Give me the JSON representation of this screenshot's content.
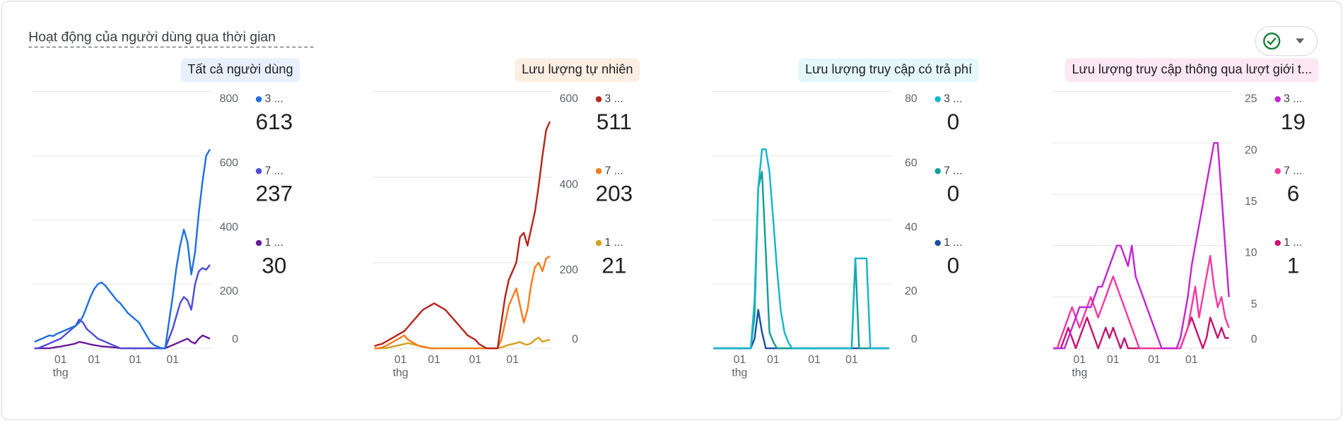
{
  "page_title": "Hoạt động của người dùng qua thời gian",
  "chart_data": [
    {
      "type": "line",
      "title": "Tất cả người dùng",
      "title_bg": "#e8f0fe",
      "xlim": [
        0,
        47
      ],
      "xticks": [
        {
          "value": 7,
          "label": "01"
        },
        {
          "value": 16,
          "label": "01"
        },
        {
          "value": 27,
          "label": "01"
        },
        {
          "value": 37,
          "label": "01"
        }
      ],
      "x_unit": "thg",
      "ylim": [
        0,
        800
      ],
      "yticks": [
        0,
        200,
        400,
        600,
        800
      ],
      "series": [
        {
          "name": "3 ...",
          "color": "#1f6fe0",
          "total": 613,
          "values": [
            20,
            25,
            30,
            35,
            40,
            38,
            45,
            50,
            55,
            60,
            65,
            70,
            80,
            100,
            130,
            160,
            185,
            200,
            205,
            195,
            180,
            165,
            150,
            140,
            125,
            110,
            100,
            90,
            80,
            60,
            40,
            20,
            10,
            5,
            0,
            0,
            80,
            160,
            250,
            320,
            370,
            330,
            230,
            300,
            420,
            520,
            600,
            620
          ]
        },
        {
          "name": "7 ...",
          "color": "#4e4bdb",
          "total": 237,
          "values": [
            0,
            0,
            5,
            10,
            15,
            20,
            25,
            30,
            40,
            50,
            60,
            70,
            90,
            80,
            60,
            50,
            40,
            30,
            25,
            20,
            15,
            10,
            5,
            0,
            0,
            0,
            0,
            0,
            0,
            0,
            0,
            0,
            0,
            0,
            0,
            0,
            30,
            60,
            100,
            140,
            160,
            150,
            120,
            200,
            240,
            250,
            245,
            260
          ]
        },
        {
          "name": "1 ...",
          "color": "#6a1b9a",
          "total": 30,
          "values": [
            0,
            0,
            0,
            0,
            0,
            2,
            4,
            5,
            8,
            10,
            12,
            15,
            20,
            18,
            15,
            12,
            10,
            8,
            6,
            5,
            4,
            3,
            2,
            0,
            0,
            0,
            0,
            0,
            0,
            0,
            0,
            0,
            0,
            0,
            0,
            0,
            5,
            10,
            15,
            20,
            25,
            30,
            20,
            15,
            30,
            40,
            35,
            30
          ]
        }
      ]
    },
    {
      "type": "line",
      "title": "Lưu lượng tự nhiên",
      "title_bg": "#fdeee2",
      "xlim": [
        0,
        47
      ],
      "xticks": [
        {
          "value": 7,
          "label": "01"
        },
        {
          "value": 16,
          "label": "01"
        },
        {
          "value": 27,
          "label": "01"
        },
        {
          "value": 37,
          "label": "01"
        }
      ],
      "x_unit": "thg",
      "ylim": [
        0,
        600
      ],
      "yticks": [
        0,
        200,
        400,
        600
      ],
      "series": [
        {
          "name": "3 ...",
          "color": "#b3261e",
          "total": 511,
          "values": [
            5,
            8,
            10,
            15,
            20,
            25,
            30,
            35,
            40,
            50,
            60,
            70,
            80,
            90,
            95,
            100,
            105,
            100,
            95,
            90,
            80,
            70,
            60,
            50,
            40,
            30,
            25,
            20,
            10,
            5,
            0,
            0,
            0,
            0,
            60,
            120,
            160,
            180,
            200,
            260,
            270,
            240,
            280,
            320,
            380,
            450,
            510,
            530
          ]
        },
        {
          "name": "7 ...",
          "color": "#f57c1f",
          "total": 203,
          "values": [
            0,
            0,
            2,
            5,
            10,
            15,
            20,
            25,
            30,
            20,
            15,
            10,
            5,
            3,
            2,
            0,
            0,
            0,
            0,
            0,
            0,
            0,
            0,
            0,
            0,
            0,
            0,
            0,
            0,
            0,
            0,
            0,
            0,
            0,
            20,
            60,
            100,
            120,
            140,
            100,
            60,
            90,
            150,
            190,
            200,
            180,
            210,
            215
          ]
        },
        {
          "name": "1 ...",
          "color": "#d4a020",
          "total": 21,
          "values": [
            0,
            0,
            0,
            0,
            2,
            4,
            6,
            8,
            10,
            12,
            10,
            8,
            6,
            4,
            2,
            0,
            0,
            0,
            0,
            0,
            0,
            0,
            0,
            0,
            0,
            0,
            0,
            0,
            0,
            0,
            0,
            0,
            0,
            0,
            2,
            5,
            8,
            10,
            12,
            15,
            10,
            8,
            12,
            20,
            25,
            15,
            18,
            20
          ]
        }
      ]
    },
    {
      "type": "line",
      "title": "Lưu lượng truy cập có trả phí",
      "title_bg": "#e4f7fb",
      "xlim": [
        0,
        47
      ],
      "xticks": [
        {
          "value": 7,
          "label": "01"
        },
        {
          "value": 16,
          "label": "01"
        },
        {
          "value": 27,
          "label": "01"
        },
        {
          "value": 37,
          "label": "01"
        }
      ],
      "x_unit": "thg",
      "ylim": [
        0,
        80
      ],
      "yticks": [
        0,
        20,
        40,
        60,
        80
      ],
      "series": [
        {
          "name": "3 ...",
          "color": "#12b5cb",
          "total": 0,
          "values": [
            0,
            0,
            0,
            0,
            0,
            0,
            0,
            0,
            0,
            0,
            0,
            15,
            50,
            62,
            62,
            55,
            40,
            25,
            12,
            5,
            2,
            0,
            0,
            0,
            0,
            0,
            0,
            0,
            0,
            0,
            0,
            0,
            0,
            0,
            0,
            0,
            0,
            0,
            28,
            28,
            28,
            28,
            0,
            0,
            0,
            0,
            0,
            0
          ]
        },
        {
          "name": "7 ...",
          "color": "#129e94",
          "total": 0,
          "values": [
            0,
            0,
            0,
            0,
            0,
            0,
            0,
            0,
            0,
            0,
            0,
            10,
            50,
            55,
            30,
            5,
            2,
            0,
            0,
            0,
            0,
            0,
            0,
            0,
            0,
            0,
            0,
            0,
            0,
            0,
            0,
            0,
            0,
            0,
            0,
            0,
            0,
            0,
            28,
            0,
            0,
            0,
            0,
            0,
            0,
            0,
            0,
            0
          ]
        },
        {
          "name": "1 ...",
          "color": "#174ea6",
          "total": 0,
          "values": [
            0,
            0,
            0,
            0,
            0,
            0,
            0,
            0,
            0,
            0,
            0,
            3,
            12,
            5,
            0,
            0,
            0,
            0,
            0,
            0,
            0,
            0,
            0,
            0,
            0,
            0,
            0,
            0,
            0,
            0,
            0,
            0,
            0,
            0,
            0,
            0,
            0,
            0,
            0,
            0,
            0,
            0,
            0,
            0,
            0,
            0,
            0,
            0
          ]
        }
      ]
    },
    {
      "type": "line",
      "title": "Lưu lượng truy cập thông qua lượt giới t...",
      "title_bg": "#fde7f3",
      "xlim": [
        0,
        47
      ],
      "xticks": [
        {
          "value": 7,
          "label": "01"
        },
        {
          "value": 16,
          "label": "01"
        },
        {
          "value": 27,
          "label": "01"
        },
        {
          "value": 37,
          "label": "01"
        }
      ],
      "x_unit": "thg",
      "ylim": [
        0,
        25
      ],
      "yticks": [
        0,
        5,
        10,
        15,
        20,
        25
      ],
      "series": [
        {
          "name": "3 ...",
          "color": "#c026d3",
          "total": 19,
          "values": [
            0,
            0,
            0,
            0,
            1,
            2,
            3,
            4,
            4,
            4,
            4,
            5,
            6,
            6,
            7,
            8,
            9,
            10,
            10,
            9,
            8,
            10,
            7,
            6,
            5,
            4,
            3,
            2,
            1,
            0,
            0,
            0,
            0,
            0,
            1,
            3,
            5,
            8,
            10,
            12,
            14,
            16,
            18,
            20,
            20,
            15,
            10,
            5
          ]
        },
        {
          "name": "7 ...",
          "color": "#f538a0",
          "total": 6,
          "values": [
            0,
            0,
            1,
            2,
            3,
            4,
            3,
            2,
            3,
            4,
            5,
            4,
            3,
            4,
            5,
            6,
            7,
            6,
            5,
            4,
            3,
            2,
            1,
            0,
            0,
            0,
            0,
            0,
            0,
            0,
            0,
            0,
            0,
            0,
            0,
            1,
            2,
            4,
            6,
            3,
            5,
            7,
            9,
            6,
            4,
            5,
            3,
            2
          ]
        },
        {
          "name": "1 ...",
          "color": "#c5156e",
          "total": 1,
          "values": [
            0,
            0,
            0,
            1,
            2,
            1,
            0,
            1,
            2,
            3,
            2,
            1,
            0,
            1,
            2,
            1,
            2,
            1,
            0,
            1,
            0,
            0,
            0,
            0,
            0,
            0,
            0,
            0,
            0,
            0,
            0,
            0,
            0,
            0,
            0,
            1,
            2,
            3,
            2,
            1,
            0,
            1,
            3,
            2,
            1,
            2,
            1,
            1
          ]
        }
      ]
    }
  ]
}
